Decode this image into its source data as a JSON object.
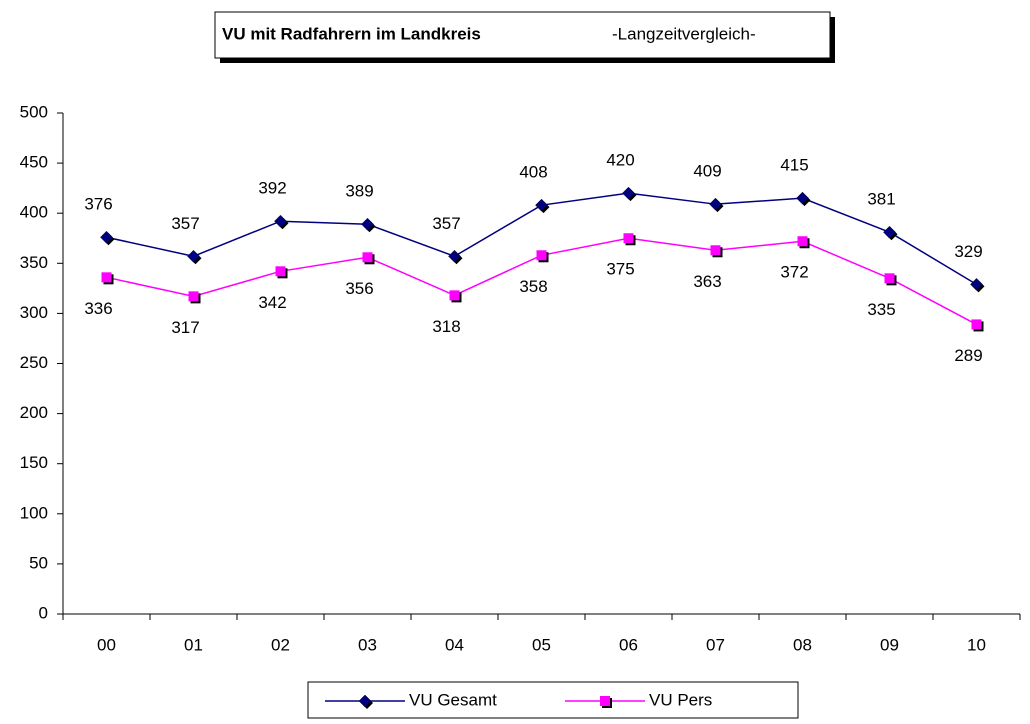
{
  "chart_data": {
    "type": "line",
    "title": "VU mit Radfahrern im Landkreis",
    "subtitle": "-Langzeitvergleich-",
    "categories": [
      "00",
      "01",
      "02",
      "03",
      "04",
      "05",
      "06",
      "07",
      "08",
      "09",
      "10"
    ],
    "series": [
      {
        "name": "VU Gesamt",
        "color": "#000080",
        "marker": "diamond",
        "values": [
          376,
          357,
          392,
          389,
          357,
          408,
          420,
          409,
          415,
          381,
          329
        ]
      },
      {
        "name": "VU Pers",
        "color": "#ff00ff",
        "marker": "square",
        "values": [
          336,
          317,
          342,
          356,
          318,
          358,
          375,
          363,
          372,
          335,
          289
        ]
      }
    ],
    "ylim": [
      0,
      500
    ],
    "yticks": [
      0,
      50,
      100,
      150,
      200,
      250,
      300,
      350,
      400,
      450,
      500
    ],
    "grid": false,
    "legend": "bottom"
  }
}
